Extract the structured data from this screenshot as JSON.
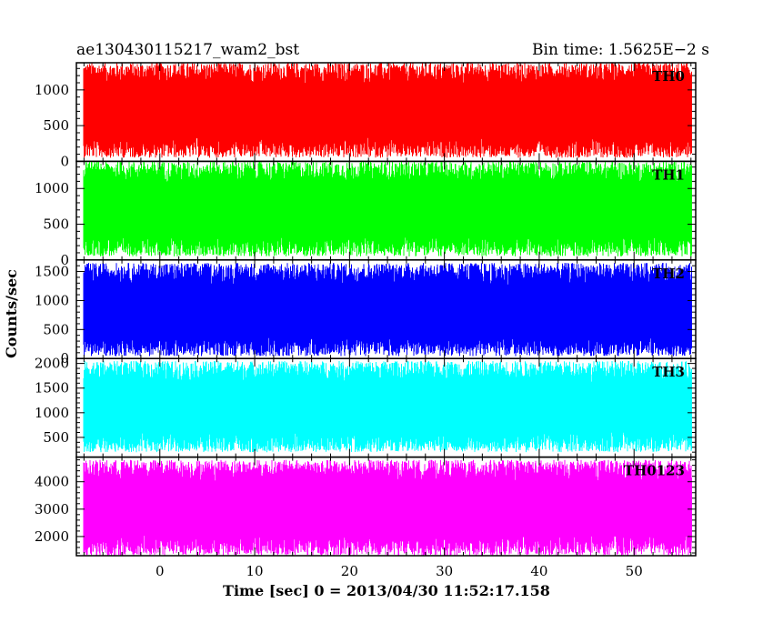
{
  "header": {
    "title_left": "ae130430115217_wam2_bst",
    "title_right": "Bin time: 1.5625E−2 s"
  },
  "axes": {
    "xlabel": "Time [sec] 0 = 2013/04/30 11:52:17.158",
    "ylabel": "Counts/sec"
  },
  "colors": {
    "TH0": "#ff0000",
    "TH1": "#00ff00",
    "TH2": "#0000ff",
    "TH3": "#00ffff",
    "TH0123": "#ff00ff"
  },
  "chart_data": {
    "type": "line",
    "x": {
      "range": [
        -8.8,
        56.5
      ],
      "ticks": [
        0,
        10,
        20,
        30,
        40,
        50
      ],
      "tick_labels": [
        "0",
        "10",
        "20",
        "30",
        "40",
        "50"
      ],
      "data_start": -8.0,
      "data_end": 56.0,
      "bin": 0.015625
    },
    "grid": false,
    "series": [
      {
        "name": "TH0",
        "color": "#ff0000",
        "ylim": [
          0,
          1380
        ],
        "yticks": [
          0,
          500,
          1000
        ],
        "ytick_labels": [
          "0",
          "500",
          "1000"
        ],
        "mean": 700,
        "low": 50,
        "high": 1380
      },
      {
        "name": "TH1",
        "color": "#00ff00",
        "ylim": [
          0,
          1380
        ],
        "yticks": [
          0,
          500,
          1000
        ],
        "ytick_labels": [
          "0",
          "500",
          "1000"
        ],
        "mean": 700,
        "low": 50,
        "high": 1380
      },
      {
        "name": "TH2",
        "color": "#0000ff",
        "ylim": [
          0,
          1700
        ],
        "yticks": [
          0,
          500,
          1000,
          1500
        ],
        "ytick_labels": [
          "0",
          "500",
          "1000",
          "1500"
        ],
        "mean": 800,
        "low": 40,
        "high": 1650
      },
      {
        "name": "TH3",
        "color": "#00ffff",
        "ylim": [
          100,
          2100
        ],
        "yticks": [
          500,
          1000,
          1500,
          2000
        ],
        "ytick_labels": [
          "500",
          "1000",
          "1500",
          "2000"
        ],
        "mean": 1100,
        "low": 200,
        "high": 2050
      },
      {
        "name": "TH0123",
        "color": "#ff00ff",
        "ylim": [
          1300,
          4900
        ],
        "yticks": [
          2000,
          3000,
          4000
        ],
        "ytick_labels": [
          "2000",
          "3000",
          "4000"
        ],
        "mean": 3000,
        "low": 1300,
        "high": 4800
      }
    ]
  }
}
